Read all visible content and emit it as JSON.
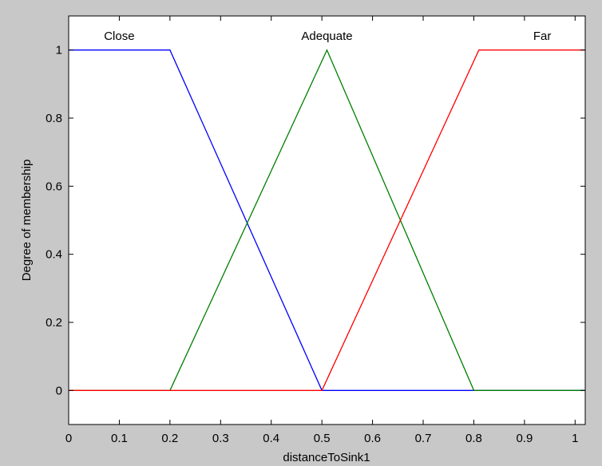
{
  "chart_data": {
    "type": "line",
    "title": "",
    "xlabel": "distanceToSink1",
    "ylabel": "Degree of membership",
    "xlim": [
      0,
      1.02
    ],
    "ylim": [
      -0.1,
      1.1
    ],
    "xticks": [
      0,
      0.1,
      0.2,
      0.3,
      0.4,
      0.5,
      0.6,
      0.7,
      0.8,
      0.9,
      1
    ],
    "xtick_labels": [
      "0",
      "0.1",
      "0.2",
      "0.3",
      "0.4",
      "0.5",
      "0.6",
      "0.7",
      "0.8",
      "0.9",
      "1"
    ],
    "yticks": [
      0,
      0.2,
      0.4,
      0.6,
      0.8,
      1
    ],
    "ytick_labels": [
      "0",
      "0.2",
      "0.4",
      "0.6",
      "0.8",
      "1"
    ],
    "grid": false,
    "series": [
      {
        "name": "Close",
        "color": "#0000ff",
        "x": [
          0,
          0.2,
          0.5,
          1.02
        ],
        "y": [
          1,
          1,
          0,
          0
        ],
        "label_x": 0.1
      },
      {
        "name": "Adequate",
        "color": "#008000",
        "x": [
          0,
          0.2,
          0.51,
          0.8,
          1.02
        ],
        "y": [
          0,
          0,
          1,
          0,
          0
        ],
        "label_x": 0.51
      },
      {
        "name": "Far",
        "color": "#ff0000",
        "x": [
          0,
          0.5,
          0.81,
          1.02
        ],
        "y": [
          0,
          0,
          1,
          1
        ],
        "label_x": 0.935
      }
    ]
  }
}
